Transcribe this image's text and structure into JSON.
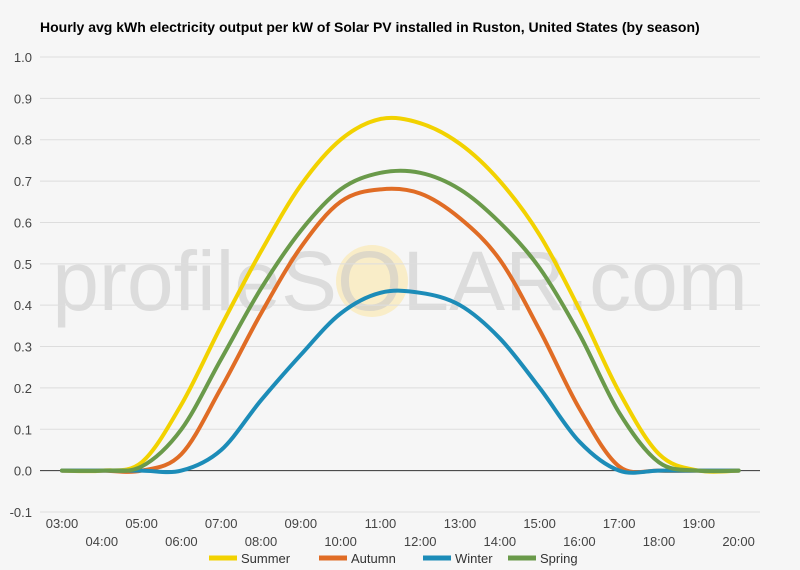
{
  "title": "Hourly avg kWh electricity output per kW of Solar PV installed in Ruston, United States (by season)",
  "watermark": "profileSOLAR.com",
  "chart_data": {
    "type": "line",
    "title": "Hourly avg kWh electricity output per kW of Solar PV installed in Ruston, United States (by season)",
    "xlabel": "",
    "ylabel": "",
    "ylim": [
      -0.1,
      1.0
    ],
    "yticks": [
      "-0.1",
      "0.0",
      "0.1",
      "0.2",
      "0.3",
      "0.4",
      "0.5",
      "0.6",
      "0.7",
      "0.8",
      "0.9",
      "1.0"
    ],
    "x": [
      "03:00",
      "04:00",
      "05:00",
      "06:00",
      "07:00",
      "08:00",
      "09:00",
      "10:00",
      "11:00",
      "12:00",
      "13:00",
      "14:00",
      "15:00",
      "16:00",
      "17:00",
      "18:00",
      "19:00",
      "20:00"
    ],
    "grid": true,
    "legend_position": "bottom",
    "series": [
      {
        "name": "Summer",
        "color": "#f2d200",
        "values": [
          0.0,
          0.0,
          0.02,
          0.16,
          0.35,
          0.53,
          0.69,
          0.8,
          0.85,
          0.84,
          0.79,
          0.7,
          0.57,
          0.39,
          0.19,
          0.04,
          0.0,
          0.0
        ]
      },
      {
        "name": "Autumn",
        "color": "#e06c25",
        "values": [
          0.0,
          0.0,
          0.0,
          0.04,
          0.2,
          0.38,
          0.54,
          0.65,
          0.68,
          0.67,
          0.61,
          0.51,
          0.34,
          0.15,
          0.01,
          0.0,
          0.0,
          0.0
        ]
      },
      {
        "name": "Winter",
        "color": "#1c8cb8",
        "values": [
          0.0,
          0.0,
          0.0,
          0.0,
          0.05,
          0.17,
          0.28,
          0.38,
          0.43,
          0.43,
          0.4,
          0.32,
          0.2,
          0.07,
          0.0,
          0.0,
          0.0,
          0.0
        ]
      },
      {
        "name": "Spring",
        "color": "#6a9a4a",
        "values": [
          0.0,
          0.0,
          0.01,
          0.1,
          0.27,
          0.44,
          0.58,
          0.68,
          0.72,
          0.72,
          0.68,
          0.6,
          0.49,
          0.33,
          0.14,
          0.02,
          0.0,
          0.0
        ]
      }
    ]
  }
}
